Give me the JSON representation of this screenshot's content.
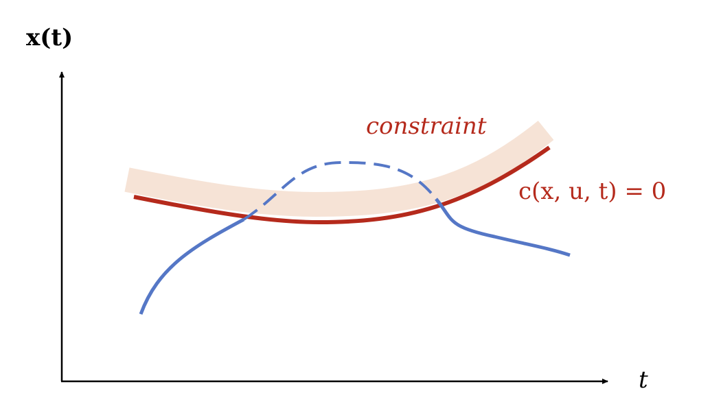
{
  "axes": {
    "y_label": "x(t)",
    "x_label": "t"
  },
  "annotations": {
    "constraint_label": "constraint",
    "constraint_equation": "c(x, u, t) = 0"
  }
}
